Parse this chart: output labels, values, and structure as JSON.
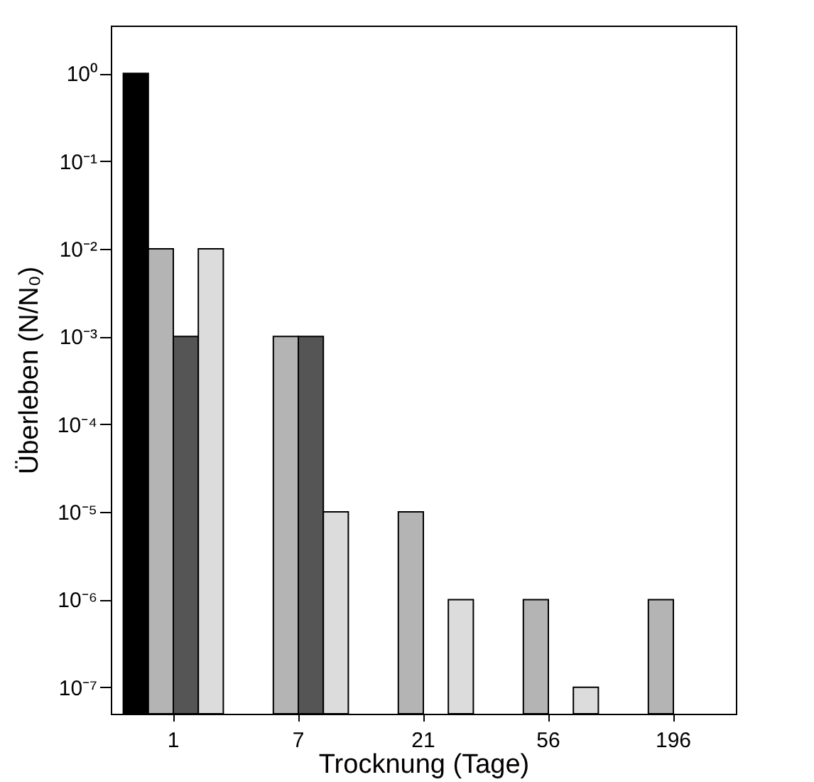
{
  "chart_data": {
    "type": "bar",
    "xlabel": "Trocknung (Tage)",
    "ylabel": "Überleben (N/N₀)",
    "categories": [
      "1",
      "7",
      "21",
      "56",
      "196"
    ],
    "series": [
      {
        "color": "#000000",
        "values": [
          1,
          null,
          null,
          null,
          null
        ]
      },
      {
        "color": "#b4b4b4",
        "values": [
          0.01,
          0.001,
          1e-05,
          1e-06,
          1e-06
        ]
      },
      {
        "color": "#555555",
        "values": [
          0.001,
          0.001,
          null,
          null,
          null
        ]
      },
      {
        "color": "#dcdcdc",
        "values": [
          0.01,
          1e-05,
          1e-06,
          1e-07,
          null
        ]
      }
    ],
    "log": true,
    "ylim": [
      5e-08,
      3.5
    ],
    "yticks": [
      {
        "value": 1,
        "label": "10⁰"
      },
      {
        "value": 0.1,
        "label": "10⁻¹"
      },
      {
        "value": 0.01,
        "label": "10⁻²"
      },
      {
        "value": 0.001,
        "label": "10⁻³"
      },
      {
        "value": 0.0001,
        "label": "10⁻⁴"
      },
      {
        "value": 1e-05,
        "label": "10⁻⁵"
      },
      {
        "value": 1e-06,
        "label": "10⁻⁶"
      },
      {
        "value": 1e-07,
        "label": "10⁻⁷"
      }
    ],
    "grid": false,
    "legend": false
  }
}
